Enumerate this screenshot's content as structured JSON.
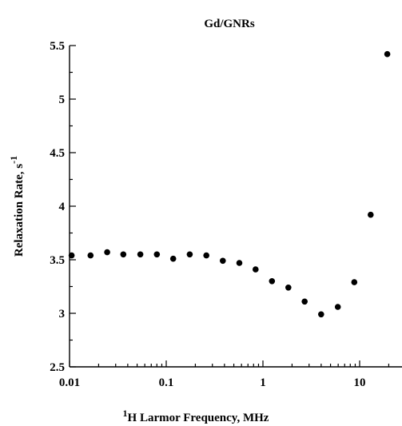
{
  "chart_data": {
    "type": "scatter",
    "title": "Gd/GNRs",
    "xlabel": {
      "superscript": "1",
      "text": "H Larmor Frequency, MHz"
    },
    "ylabel": {
      "text": "Relaxation Rate, s",
      "superscript": "-1"
    },
    "x_scale": "log",
    "xlim": [
      0.01,
      40
    ],
    "ylim": [
      2.5,
      5.5
    ],
    "x_ticks": [
      "0.01",
      "0.1",
      "1",
      "10"
    ],
    "y_ticks": [
      "2.5",
      "3",
      "3.5",
      "4",
      "4.5",
      "5",
      "5.5"
    ],
    "grid": false,
    "series": [
      {
        "x": [
          0.0105,
          0.0165,
          0.0245,
          0.036,
          0.054,
          0.08,
          0.118,
          0.175,
          0.26,
          0.385,
          0.57,
          0.84,
          1.24,
          1.83,
          2.7,
          4.0,
          5.95,
          8.8,
          13.0,
          19.3
        ],
        "y": [
          3.54,
          3.54,
          3.57,
          3.55,
          3.55,
          3.55,
          3.51,
          3.55,
          3.54,
          3.49,
          3.47,
          3.41,
          3.3,
          3.24,
          3.11,
          2.99,
          3.06,
          3.29,
          3.92,
          5.42
        ]
      }
    ]
  }
}
